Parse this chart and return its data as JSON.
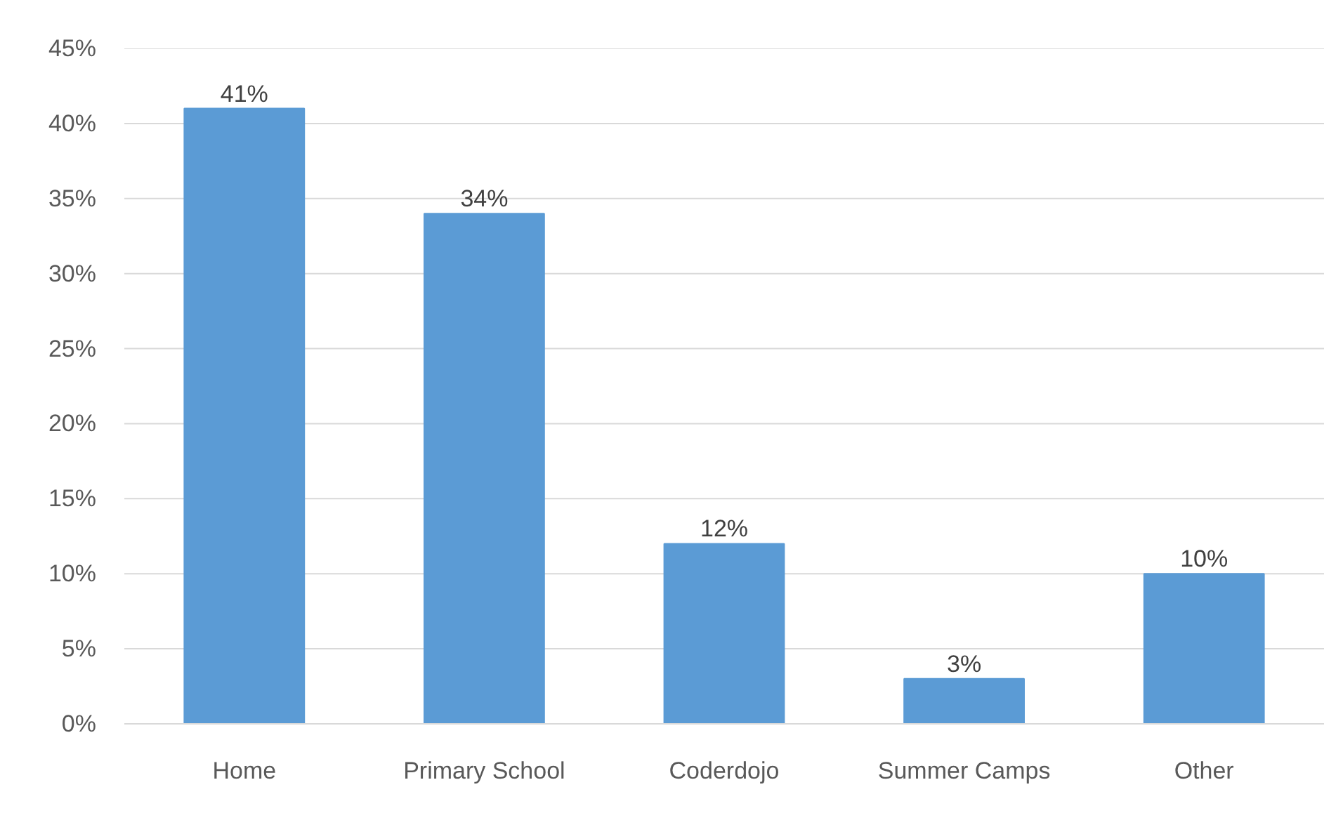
{
  "chart_data": {
    "type": "bar",
    "categories": [
      "Home",
      "Primary School",
      "Coderdojo",
      "Summer Camps",
      "Other"
    ],
    "values": [
      41,
      34,
      12,
      3,
      10
    ],
    "value_labels": [
      "41%",
      "34%",
      "12%",
      "3%",
      "10%"
    ],
    "color": "#5b9bd5",
    "ylim": [
      0,
      45
    ],
    "yticks": [
      {
        "value": 0,
        "label": "0%"
      },
      {
        "value": 5,
        "label": "5%"
      },
      {
        "value": 10,
        "label": "10%"
      },
      {
        "value": 15,
        "label": "15%"
      },
      {
        "value": 20,
        "label": "20%"
      },
      {
        "value": 25,
        "label": "25%"
      },
      {
        "value": 30,
        "label": "30%"
      },
      {
        "value": 35,
        "label": "35%"
      },
      {
        "value": 40,
        "label": "40%"
      },
      {
        "value": 45,
        "label": "45%"
      }
    ],
    "grid": "y"
  }
}
